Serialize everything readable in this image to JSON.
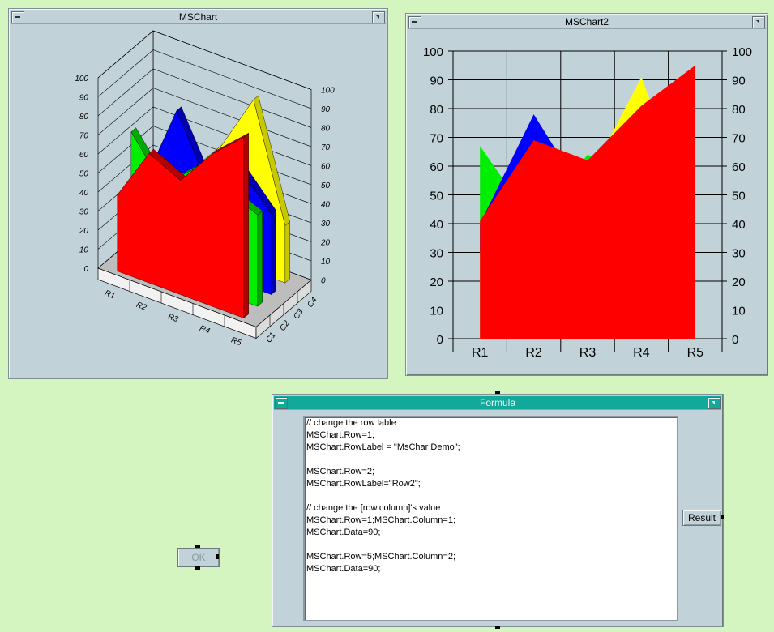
{
  "windows": {
    "chart1": {
      "title": "MSChart"
    },
    "chart2": {
      "title": "MSChart2"
    },
    "formula": {
      "title": "Formula"
    }
  },
  "colors": {
    "red": "#ff0000",
    "blue": "#0000ff",
    "yellow": "#ffff00",
    "green": "#00ee00",
    "teal": "#12a89a"
  },
  "chart_data": [
    {
      "type": "area",
      "view": "3d",
      "title": "",
      "categories": [
        "R1",
        "R2",
        "R3",
        "R4",
        "R5"
      ],
      "depth_categories": [
        "C1",
        "C2",
        "C3",
        "C4"
      ],
      "ylim": [
        0,
        100
      ],
      "yticks": [
        0,
        10,
        20,
        30,
        40,
        50,
        60,
        70,
        80,
        90,
        100
      ],
      "series": [
        {
          "name": "C1",
          "color": "red",
          "values": [
            40,
            68,
            60,
            80,
            95
          ]
        },
        {
          "name": "C2",
          "color": "green",
          "values": [
            67,
            45,
            60,
            55,
            48
          ]
        },
        {
          "name": "C3",
          "color": "blue",
          "values": [
            35,
            78,
            45,
            60,
            42
          ]
        },
        {
          "name": "C4",
          "color": "yellow",
          "values": [
            30,
            40,
            60,
            90,
            30
          ]
        }
      ]
    },
    {
      "type": "area",
      "title": "",
      "categories": [
        "R1",
        "R2",
        "R3",
        "R4",
        "R5"
      ],
      "ylim": [
        0,
        100
      ],
      "yticks": [
        0,
        10,
        20,
        30,
        40,
        50,
        60,
        70,
        80,
        90,
        100
      ],
      "grid": true,
      "series": [
        {
          "color": "green",
          "values": [
            67,
            40,
            64,
            55,
            45
          ]
        },
        {
          "color": "blue",
          "values": [
            40,
            78,
            48,
            60,
            42
          ]
        },
        {
          "color": "yellow",
          "values": [
            30,
            45,
            55,
            91,
            40
          ]
        },
        {
          "color": "red",
          "values": [
            41,
            69,
            62,
            81,
            95
          ]
        }
      ]
    }
  ],
  "formula": {
    "lines": [
      "// change the row lable",
      "MSChart.Row=1;",
      "MSChart.RowLabel = \"MsChar Demo\";",
      "",
      "MSChart.Row=2;",
      "MSChart.RowLabel=\"Row2\";",
      "",
      "// change the [row,column]'s value",
      "MSChart.Row=1;MSChart.Column=1;",
      "MSChart.Data=90;",
      "",
      "MSChart.Row=5;MSChart.Column=2;",
      "MSChart.Data=90;"
    ],
    "result_label": "Result"
  },
  "ok_label": "OK"
}
